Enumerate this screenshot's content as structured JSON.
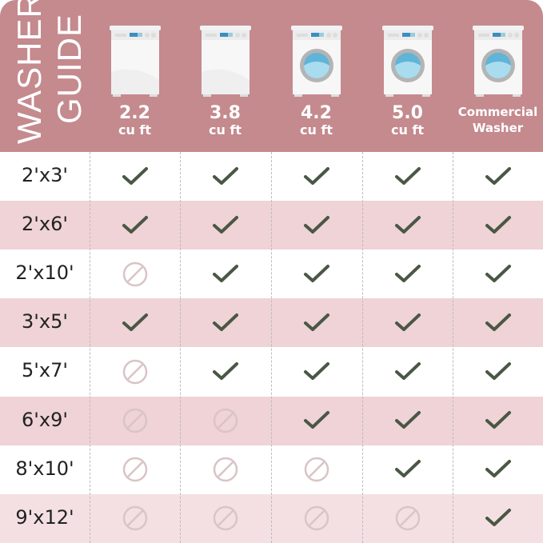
{
  "title": {
    "line1": "WASHER",
    "line2": "GUIDE"
  },
  "columns": [
    {
      "size": "2.2",
      "unit": "cu ft",
      "type": "top-load"
    },
    {
      "size": "3.8",
      "unit": "cu ft",
      "type": "top-load"
    },
    {
      "size": "4.2",
      "unit": "cu ft",
      "type": "front-load"
    },
    {
      "size": "5.0",
      "unit": "cu ft",
      "type": "front-load"
    },
    {
      "size": "Commercial",
      "unit": "Washer",
      "type": "front-load"
    }
  ],
  "rows": [
    {
      "label": "2'x3'",
      "fits": [
        true,
        true,
        true,
        true,
        true
      ]
    },
    {
      "label": "2'x6'",
      "fits": [
        true,
        true,
        true,
        true,
        true
      ]
    },
    {
      "label": "2'x10'",
      "fits": [
        false,
        true,
        true,
        true,
        true
      ]
    },
    {
      "label": "3'x5'",
      "fits": [
        true,
        true,
        true,
        true,
        true
      ]
    },
    {
      "label": "5'x7'",
      "fits": [
        false,
        true,
        true,
        true,
        true
      ]
    },
    {
      "label": "6'x9'",
      "fits": [
        false,
        false,
        true,
        true,
        true
      ]
    },
    {
      "label": "8'x10'",
      "fits": [
        false,
        false,
        false,
        true,
        true
      ]
    },
    {
      "label": "9'x12'",
      "fits": [
        false,
        false,
        false,
        false,
        true
      ]
    }
  ],
  "colors": {
    "header": "#c48a8e",
    "row_pink": "#efd3d6",
    "check": "#4a5745",
    "no": "#d9c4c6"
  },
  "icons": {
    "yes": "check-icon",
    "no": "prohibited-icon"
  }
}
